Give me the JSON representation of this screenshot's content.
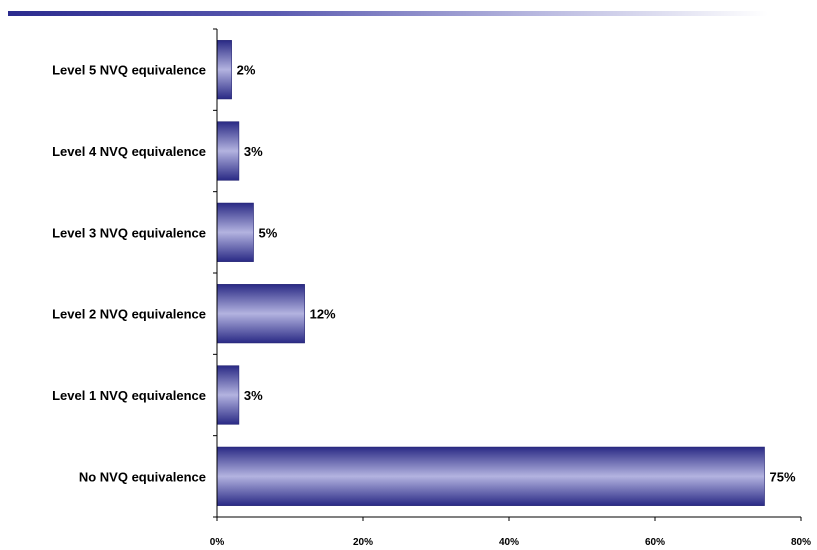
{
  "chart_data": {
    "type": "bar",
    "orientation": "horizontal",
    "categories": [
      "Level 5 NVQ equivalence",
      "Level 4 NVQ equivalence",
      "Level 3 NVQ equivalence",
      "Level 2 NVQ equivalence",
      "Level 1 NVQ equivalence",
      "No NVQ equivalence"
    ],
    "values": [
      2,
      3,
      5,
      12,
      3,
      75
    ],
    "value_labels": [
      "2%",
      "3%",
      "5%",
      "12%",
      "3%",
      "75%"
    ],
    "x_ticks": [
      "0%",
      "20%",
      "40%",
      "60%",
      "80%"
    ],
    "xlim": [
      0,
      80
    ],
    "title": "",
    "xlabel": "",
    "ylabel": "",
    "grid": false,
    "legend": "none",
    "bar_gradient": [
      "#2a2a85",
      "#b3b3e0",
      "#2a2a85"
    ]
  }
}
